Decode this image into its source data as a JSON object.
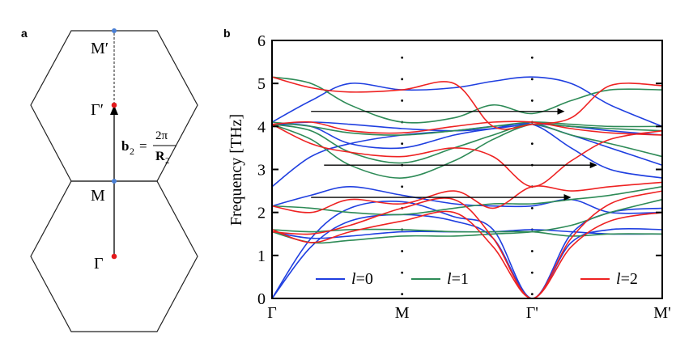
{
  "panel_a": {
    "label": "a",
    "points": {
      "m_prime": "M′",
      "gamma_prime": "Γ′",
      "m": "M",
      "gamma": "Γ"
    },
    "vector": {
      "lhs": "b",
      "sub": "2",
      "eq": "=",
      "num": "2π",
      "den": "R",
      "den_sub": "2"
    },
    "colors": {
      "gamma_point": "#e31a1c",
      "m_point": "#4a7fd4",
      "arrow": "#000000"
    }
  },
  "panel_b": {
    "label": "b",
    "legend": [
      {
        "label_italic": "l",
        "label_rest": "=0",
        "color": "#1f3fe0"
      },
      {
        "label_italic": "l",
        "label_rest": "=1",
        "color": "#2e8b57"
      },
      {
        "label_italic": "l",
        "label_rest": "=2",
        "color": "#ee2222"
      }
    ]
  },
  "chart_data": {
    "type": "line",
    "ylabel": "Frequency [THz]",
    "xlabel": "",
    "x_ticks": [
      "Γ",
      "M",
      "Γ'",
      "M'"
    ],
    "x_range": [
      0,
      3
    ],
    "y_range": [
      0,
      6
    ],
    "y_ticks": [
      "0",
      "1",
      "2",
      "3",
      "4",
      "5",
      "6"
    ],
    "legend_position": "bottom",
    "series": [
      {
        "name": "l=0",
        "color": "#1f3fe0",
        "bands": [
          [
            [
              0,
              0
            ],
            [
              0.3,
              1.4
            ],
            [
              0.6,
              2.1
            ],
            [
              1,
              2.25
            ],
            [
              1.4,
              1.9
            ],
            [
              1.7,
              1.6
            ],
            [
              2,
              0
            ],
            [
              2.3,
              1.5
            ],
            [
              2.6,
              2.0
            ],
            [
              3,
              2.1
            ]
          ],
          [
            [
              0,
              0
            ],
            [
              0.3,
              1.2
            ],
            [
              0.6,
              1.8
            ],
            [
              1,
              1.95
            ],
            [
              1.4,
              1.8
            ],
            [
              1.7,
              1.4
            ],
            [
              2,
              0
            ],
            [
              2.3,
              1.3
            ],
            [
              2.6,
              1.6
            ],
            [
              3,
              1.6
            ]
          ],
          [
            [
              0,
              1.55
            ],
            [
              0.3,
              1.4
            ],
            [
              0.6,
              1.45
            ],
            [
              1,
              1.55
            ],
            [
              1.4,
              1.55
            ],
            [
              1.7,
              1.55
            ],
            [
              2,
              1.6
            ],
            [
              2.3,
              1.55
            ],
            [
              2.6,
              1.5
            ],
            [
              3,
              1.5
            ]
          ],
          [
            [
              0,
              2.15
            ],
            [
              0.3,
              2.4
            ],
            [
              0.6,
              2.6
            ],
            [
              1,
              2.4
            ],
            [
              1.4,
              2.2
            ],
            [
              1.7,
              2.15
            ],
            [
              2,
              2.15
            ],
            [
              2.3,
              2.3
            ],
            [
              2.6,
              2.0
            ],
            [
              3,
              2.0
            ]
          ],
          [
            [
              0,
              2.6
            ],
            [
              0.3,
              3.3
            ],
            [
              0.6,
              3.6
            ],
            [
              1,
              3.8
            ],
            [
              1.4,
              3.9
            ],
            [
              1.7,
              4.0
            ],
            [
              2,
              4.05
            ],
            [
              2.3,
              3.8
            ],
            [
              2.6,
              3.5
            ],
            [
              3,
              3.1
            ]
          ],
          [
            [
              0,
              4.05
            ],
            [
              0.3,
              4.0
            ],
            [
              0.6,
              3.6
            ],
            [
              1,
              3.5
            ],
            [
              1.4,
              3.8
            ],
            [
              1.7,
              3.95
            ],
            [
              2,
              4.05
            ],
            [
              2.3,
              3.5
            ],
            [
              2.6,
              3.0
            ],
            [
              3,
              2.8
            ]
          ],
          [
            [
              0,
              4.05
            ],
            [
              0.3,
              4.1
            ],
            [
              0.6,
              4.05
            ],
            [
              1,
              3.95
            ],
            [
              1.4,
              3.9
            ],
            [
              1.7,
              3.95
            ],
            [
              2,
              4.05
            ],
            [
              2.3,
              4.0
            ],
            [
              2.6,
              3.9
            ],
            [
              3,
              3.8
            ]
          ],
          [
            [
              0,
              4.1
            ],
            [
              0.3,
              4.6
            ],
            [
              0.6,
              5.0
            ],
            [
              1,
              4.85
            ],
            [
              1.4,
              4.9
            ],
            [
              1.7,
              5.05
            ],
            [
              2,
              5.15
            ],
            [
              2.3,
              5.0
            ],
            [
              2.6,
              4.5
            ],
            [
              3,
              4.0
            ]
          ]
        ]
      },
      {
        "name": "l=1",
        "color": "#2e8b57",
        "bands": [
          [
            [
              0,
              1.55
            ],
            [
              0.3,
              1.3
            ],
            [
              0.6,
              1.35
            ],
            [
              1,
              1.45
            ],
            [
              1.4,
              1.45
            ],
            [
              1.7,
              1.5
            ],
            [
              2,
              1.55
            ],
            [
              2.3,
              1.7
            ],
            [
              2.6,
              2.0
            ],
            [
              3,
              2.3
            ]
          ],
          [
            [
              0,
              1.6
            ],
            [
              0.3,
              1.55
            ],
            [
              0.6,
              1.6
            ],
            [
              1,
              1.6
            ],
            [
              1.4,
              1.55
            ],
            [
              1.7,
              1.55
            ],
            [
              2,
              1.55
            ],
            [
              2.3,
              1.45
            ],
            [
              2.6,
              1.5
            ],
            [
              3,
              1.5
            ]
          ],
          [
            [
              0,
              2.15
            ],
            [
              0.3,
              2.1
            ],
            [
              0.6,
              2.0
            ],
            [
              1,
              1.95
            ],
            [
              1.4,
              2.1
            ],
            [
              1.7,
              2.2
            ],
            [
              2,
              2.2
            ],
            [
              2.3,
              2.3
            ],
            [
              2.6,
              2.4
            ],
            [
              3,
              2.6
            ]
          ],
          [
            [
              0,
              4.05
            ],
            [
              0.3,
              3.7
            ],
            [
              0.6,
              3.1
            ],
            [
              1,
              2.8
            ],
            [
              1.4,
              3.2
            ],
            [
              1.7,
              3.7
            ],
            [
              2,
              4.05
            ],
            [
              2.3,
              4.0
            ],
            [
              2.6,
              3.95
            ],
            [
              3,
              3.9
            ]
          ],
          [
            [
              0,
              4.05
            ],
            [
              0.3,
              3.9
            ],
            [
              0.6,
              3.4
            ],
            [
              1,
              3.15
            ],
            [
              1.4,
              3.5
            ],
            [
              1.7,
              3.8
            ],
            [
              2,
              4.05
            ],
            [
              2.3,
              3.8
            ],
            [
              2.6,
              3.6
            ],
            [
              3,
              3.3
            ]
          ],
          [
            [
              0,
              4.1
            ],
            [
              0.3,
              4.0
            ],
            [
              0.6,
              3.85
            ],
            [
              1,
              3.8
            ],
            [
              1.4,
              3.9
            ],
            [
              1.7,
              4.0
            ],
            [
              2,
              4.1
            ],
            [
              2.3,
              4.05
            ],
            [
              2.6,
              4.0
            ],
            [
              3,
              4.0
            ]
          ],
          [
            [
              0,
              5.15
            ],
            [
              0.3,
              5.0
            ],
            [
              0.6,
              4.5
            ],
            [
              1,
              4.1
            ],
            [
              1.4,
              4.2
            ],
            [
              1.7,
              4.5
            ],
            [
              2,
              4.3
            ],
            [
              2.3,
              4.6
            ],
            [
              2.6,
              4.85
            ],
            [
              3,
              4.85
            ]
          ]
        ]
      },
      {
        "name": "l=2",
        "color": "#ee2222",
        "bands": [
          [
            [
              0,
              1.55
            ],
            [
              0.3,
              1.5
            ],
            [
              0.6,
              1.7
            ],
            [
              1,
              2.1
            ],
            [
              1.4,
              2.3
            ],
            [
              1.7,
              1.4
            ],
            [
              2,
              0
            ],
            [
              2.3,
              1.4
            ],
            [
              2.6,
              2.2
            ],
            [
              3,
              2.5
            ]
          ],
          [
            [
              0,
              1.6
            ],
            [
              0.3,
              1.3
            ],
            [
              0.6,
              1.55
            ],
            [
              1,
              1.8
            ],
            [
              1.4,
              2.0
            ],
            [
              1.7,
              1.2
            ],
            [
              2,
              0
            ],
            [
              2.3,
              1.2
            ],
            [
              2.6,
              1.8
            ],
            [
              3,
              2.0
            ]
          ],
          [
            [
              0,
              2.15
            ],
            [
              0.3,
              2.0
            ],
            [
              0.6,
              2.3
            ],
            [
              1,
              2.2
            ],
            [
              1.4,
              2.5
            ],
            [
              1.7,
              2.1
            ],
            [
              2,
              2.6
            ],
            [
              2.3,
              2.5
            ],
            [
              2.6,
              2.6
            ],
            [
              3,
              2.7
            ]
          ],
          [
            [
              0,
              4.05
            ],
            [
              0.3,
              3.6
            ],
            [
              0.6,
              3.4
            ],
            [
              1,
              3.3
            ],
            [
              1.4,
              3.5
            ],
            [
              1.7,
              3.3
            ],
            [
              2,
              2.6
            ],
            [
              2.3,
              3.2
            ],
            [
              2.6,
              3.7
            ],
            [
              3,
              3.9
            ]
          ],
          [
            [
              0,
              4.05
            ],
            [
              0.3,
              4.1
            ],
            [
              0.6,
              3.9
            ],
            [
              1,
              3.85
            ],
            [
              1.4,
              4.0
            ],
            [
              1.7,
              4.1
            ],
            [
              2,
              4.1
            ],
            [
              2.3,
              3.95
            ],
            [
              2.6,
              3.85
            ],
            [
              3,
              3.8
            ]
          ],
          [
            [
              0,
              5.15
            ],
            [
              0.3,
              4.9
            ],
            [
              0.6,
              4.8
            ],
            [
              1,
              4.85
            ],
            [
              1.4,
              5.0
            ],
            [
              1.7,
              4.0
            ],
            [
              2,
              4.05
            ],
            [
              2.3,
              4.2
            ],
            [
              2.6,
              4.95
            ],
            [
              3,
              4.95
            ]
          ]
        ]
      }
    ],
    "nesting_arrows": [
      {
        "x_from": 0.3,
        "x_to": 2.25,
        "y": 4.35
      },
      {
        "x_from": 0.4,
        "x_to": 2.5,
        "y": 3.1
      },
      {
        "x_from": 0.3,
        "x_to": 2.3,
        "y": 2.35
      }
    ],
    "dotted_guides": [
      1,
      2
    ]
  }
}
